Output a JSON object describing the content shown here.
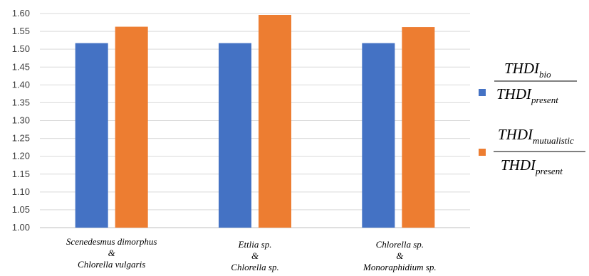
{
  "chart_data": {
    "type": "bar",
    "categories": [
      [
        "Scenedesmus dimorphus",
        "&",
        "Chlorella vulgaris"
      ],
      [
        "Ettlia sp.",
        "&",
        "Chlorella sp."
      ],
      [
        "Chlorella sp.",
        "&",
        "Monoraphidium sp."
      ]
    ],
    "series": [
      {
        "numerator": "THDI",
        "numerator_sub": "bio",
        "denominator": "THDI",
        "denominator_sub": "present",
        "values": [
          1.517,
          1.517,
          1.517
        ],
        "color": "#4472C4"
      },
      {
        "numerator": "THDI",
        "numerator_sub": "mutualistic",
        "denominator": "THDI",
        "denominator_sub": "present",
        "values": [
          1.563,
          1.596,
          1.562
        ],
        "color": "#ED7D31"
      }
    ],
    "yticks": [
      "1.00",
      "1.05",
      "1.10",
      "1.15",
      "1.20",
      "1.25",
      "1.30",
      "1.35",
      "1.40",
      "1.45",
      "1.50",
      "1.55",
      "1.60"
    ],
    "ylim": [
      1.0,
      1.6
    ],
    "grid": true,
    "legend_position": "right"
  }
}
